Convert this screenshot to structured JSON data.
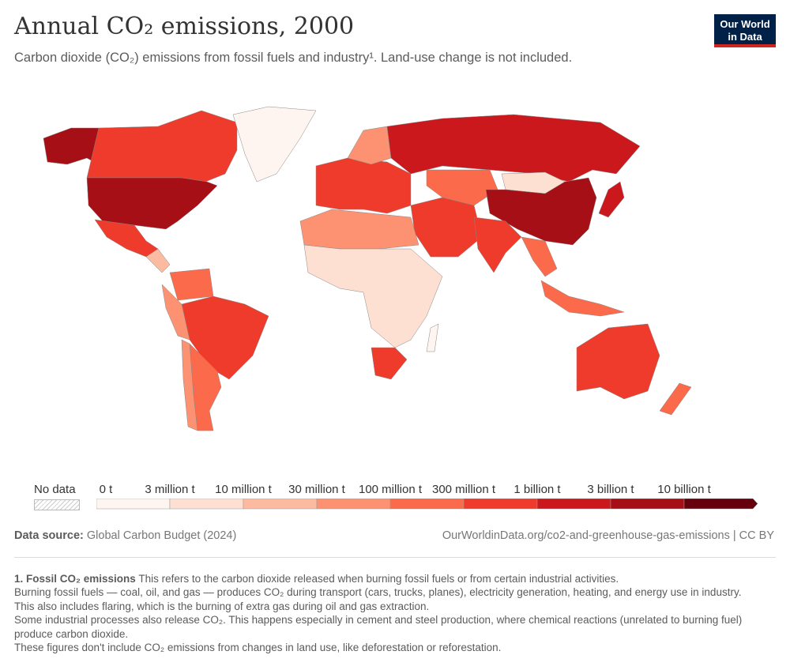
{
  "header": {
    "title": "Annual CO₂ emissions, 2000",
    "subtitle": "Carbon dioxide (CO₂) emissions from fossil fuels and industry¹. Land-use change is not included.",
    "logo": "Our World in Data"
  },
  "legend": {
    "no_data_label": "No data",
    "ticks": [
      "0 t",
      "3 million t",
      "10 million t",
      "30 million t",
      "100 million t",
      "300 million t",
      "1 billion t",
      "3 billion t",
      "10 billion t"
    ],
    "colors": [
      "#fff5f0",
      "#fee0d2",
      "#fcbba1",
      "#fc9272",
      "#fb6a4a",
      "#ef3b2c",
      "#cb181d",
      "#a50f15",
      "#67000d"
    ]
  },
  "footer": {
    "source_label": "Data source:",
    "source_value": "Global Carbon Budget (2024)",
    "url": "OurWorldinData.org/co2-and-greenhouse-gas-emissions | CC BY"
  },
  "notes": {
    "title": "1. Fossil CO₂ emissions",
    "lines": [
      "This refers to the carbon dioxide released when burning fossil fuels or from certain industrial activities.",
      "Burning fossil fuels — coal, oil, and gas — produces CO₂ during transport (cars, trucks, planes), electricity generation, heating, and energy use in industry. This also includes flaring, which is the burning of extra gas during oil and gas extraction.",
      "Some industrial processes also release CO₂. This happens especially in cement and steel production, where chemical reactions (unrelated to burning fuel) produce carbon dioxide.",
      "These figures don't include CO₂ emissions from changes in land use, like deforestation or reforestation."
    ]
  }
}
